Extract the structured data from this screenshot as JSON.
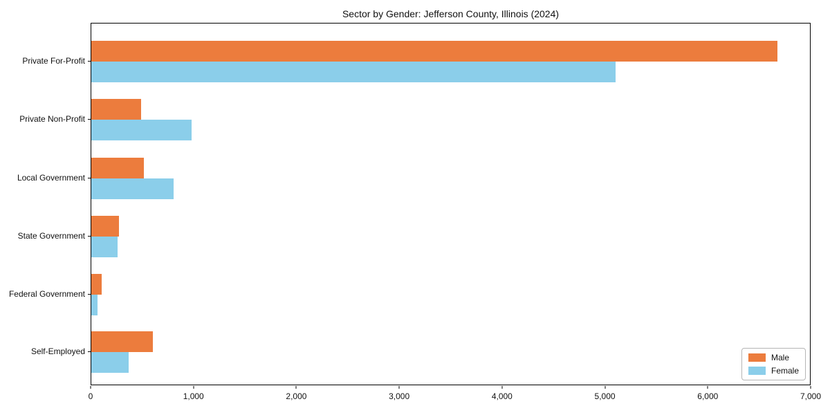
{
  "chart_data": {
    "type": "bar",
    "orientation": "horizontal",
    "title": "Sector by Gender: Jefferson County, Illinois (2024)",
    "categories": [
      "Private For-Profit",
      "Private Non-Profit",
      "Local Government",
      "State Government",
      "Federal Government",
      "Self-Employed"
    ],
    "series": [
      {
        "name": "Male",
        "color": "#EC7C3D",
        "values": [
          6685,
          485,
          510,
          270,
          100,
          600
        ]
      },
      {
        "name": "Female",
        "color": "#8BCEEA",
        "values": [
          5105,
          975,
          805,
          255,
          60,
          365
        ]
      }
    ],
    "xlabel": "",
    "ylabel": "",
    "xlim": [
      0,
      7000
    ],
    "x_ticks": [
      "0",
      "1,000",
      "2,000",
      "3,000",
      "4,000",
      "5,000",
      "6,000",
      "7,000"
    ],
    "grid": false,
    "legend": {
      "position": "lower right",
      "entries": [
        "Male",
        "Female"
      ]
    }
  }
}
